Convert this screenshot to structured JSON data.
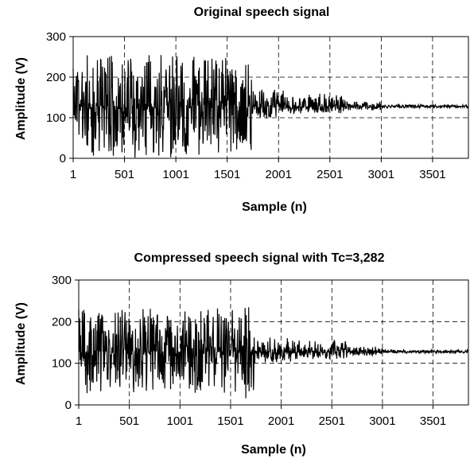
{
  "chart_data": [
    {
      "type": "line",
      "title": "Original speech signal",
      "xlabel": "Sample (n)",
      "ylabel": "Amplitude (V)",
      "xlim": [
        1,
        3850
      ],
      "ylim": [
        0,
        300
      ],
      "x_ticks": [
        "1",
        "501",
        "1001",
        "1501",
        "2001",
        "2501",
        "3001",
        "3501"
      ],
      "y_ticks": [
        "0",
        "100",
        "200",
        "300"
      ],
      "grid": "dashed",
      "series": [
        {
          "color": "#000000",
          "segments": [
            {
              "x_start": 1,
              "x_end": 1530,
              "center": 128,
              "low": 0,
              "high": 255
            },
            {
              "x_start": 1530,
              "x_end": 1740,
              "center": 128,
              "low": 10,
              "high": 240
            },
            {
              "x_start": 1740,
              "x_end": 2100,
              "center": 128,
              "low": 95,
              "high": 170
            },
            {
              "x_start": 2100,
              "x_end": 2650,
              "center": 128,
              "low": 110,
              "high": 160
            },
            {
              "x_start": 2650,
              "x_end": 3000,
              "center": 128,
              "low": 118,
              "high": 140
            },
            {
              "x_start": 3000,
              "x_end": 3850,
              "center": 128,
              "low": 124,
              "high": 132
            }
          ]
        }
      ]
    },
    {
      "type": "line",
      "title": "Compressed speech signal with Tc=3,282",
      "xlabel": "Sample (n)",
      "ylabel": "Amplitude (V)",
      "xlim": [
        1,
        3850
      ],
      "ylim": [
        0,
        300
      ],
      "x_ticks": [
        "1",
        "501",
        "1001",
        "1501",
        "2001",
        "2501",
        "3001",
        "3501"
      ],
      "y_ticks": [
        "0",
        "100",
        "200",
        "300"
      ],
      "grid": "dashed",
      "series": [
        {
          "color": "#000000",
          "segments": [
            {
              "x_start": 1,
              "x_end": 1530,
              "center": 128,
              "low": 25,
              "high": 232
            },
            {
              "x_start": 1530,
              "x_end": 1740,
              "center": 128,
              "low": 10,
              "high": 240
            },
            {
              "x_start": 1740,
              "x_end": 2100,
              "center": 128,
              "low": 100,
              "high": 165
            },
            {
              "x_start": 2100,
              "x_end": 2650,
              "center": 128,
              "low": 110,
              "high": 155
            },
            {
              "x_start": 2650,
              "x_end": 3000,
              "center": 128,
              "low": 118,
              "high": 140
            },
            {
              "x_start": 3000,
              "x_end": 3850,
              "center": 128,
              "low": 124,
              "high": 132
            }
          ]
        }
      ]
    }
  ]
}
